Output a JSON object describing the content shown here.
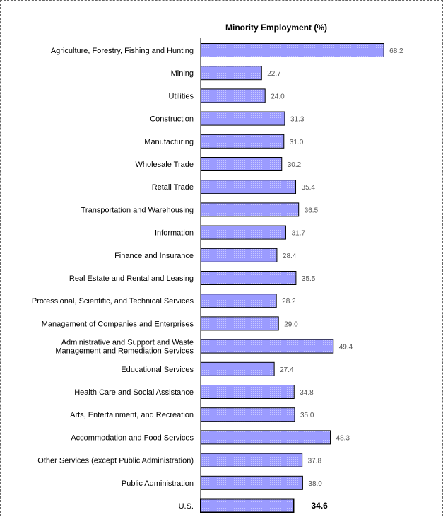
{
  "chart_data": {
    "type": "bar",
    "orientation": "horizontal",
    "title": "Minority Employment (%)",
    "categories": [
      [
        "Agriculture, Forestry, Fishing and Hunting"
      ],
      [
        "Mining"
      ],
      [
        "Utilities"
      ],
      [
        "Construction"
      ],
      [
        "Manufacturing"
      ],
      [
        "Wholesale Trade"
      ],
      [
        "Retail Trade"
      ],
      [
        "Transportation and Warehousing"
      ],
      [
        "Information"
      ],
      [
        "Finance and Insurance"
      ],
      [
        "Real Estate and Rental and Leasing"
      ],
      [
        "Professional, Scientific, and Technical Services"
      ],
      [
        "Management of Companies and Enterprises"
      ],
      [
        "Administrative and Support and Waste",
        "Management and Remediation Services"
      ],
      [
        "Educational Services"
      ],
      [
        "Health Care and Social Assistance"
      ],
      [
        "Arts, Entertainment, and Recreation"
      ],
      [
        "Accommodation and Food Services"
      ],
      [
        "Other Services (except Public Administration)"
      ],
      [
        "Public Administration"
      ],
      [
        "U.S."
      ]
    ],
    "values": [
      68.2,
      22.7,
      24.0,
      31.3,
      31.0,
      30.2,
      35.4,
      36.5,
      31.7,
      28.4,
      35.5,
      28.2,
      29.0,
      49.4,
      27.4,
      34.8,
      35.0,
      48.3,
      37.8,
      38.0,
      34.6
    ],
    "value_labels": [
      "68.2",
      "22.7",
      "24.0",
      "31.3",
      "31.0",
      "30.2",
      "35.4",
      "36.5",
      "31.7",
      "28.4",
      "35.5",
      "28.2",
      "29.0",
      "49.4",
      "27.4",
      "34.8",
      "35.0",
      "48.3",
      "37.8",
      "38.0",
      "34.6"
    ],
    "highlight_category": "U.S.",
    "xlim": [
      0,
      70
    ],
    "grid": false,
    "legend": "none",
    "colors": {
      "bar": "#9b9bff",
      "bar_edge": "#000000",
      "highlight_edge": "#000000"
    }
  }
}
